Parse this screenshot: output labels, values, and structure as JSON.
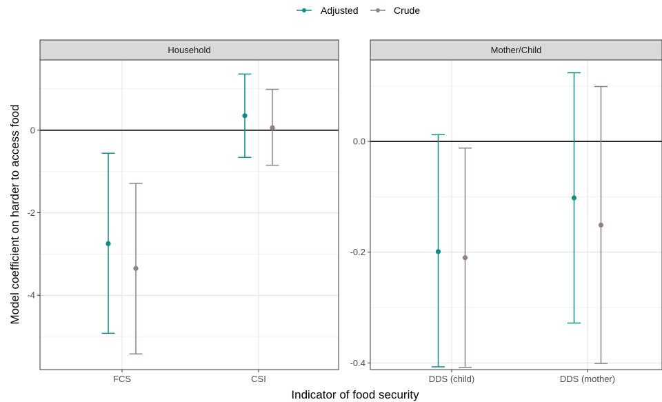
{
  "legend": {
    "items": [
      {
        "label": "Adjusted",
        "color": "#0f8c86"
      },
      {
        "label": "Crude",
        "color": "#8e808f"
      }
    ]
  },
  "axes": {
    "xlabel": "Indicator of food security",
    "ylabel": "Model coefficient on harder to access food"
  },
  "chart_data": [
    {
      "type": "scatter",
      "panel": "Household",
      "categories": [
        "FCS",
        "CSI"
      ],
      "ylim": [
        -5.8,
        1.7
      ],
      "yticks": [
        -4,
        -2,
        0
      ],
      "ytick_labels": [
        "-4",
        "-2",
        "0"
      ],
      "reference_line": 0,
      "grid": true,
      "series": [
        {
          "name": "Adjusted",
          "color": "#0f8c86",
          "points": [
            {
              "category": "FCS",
              "estimate": -2.75,
              "lower": -4.92,
              "upper": -0.56
            },
            {
              "category": "CSI",
              "estimate": 0.35,
              "lower": -0.66,
              "upper": 1.36
            }
          ]
        },
        {
          "name": "Crude",
          "color": "#8e808f",
          "points": [
            {
              "category": "FCS",
              "estimate": -3.35,
              "lower": -5.42,
              "upper": -1.29
            },
            {
              "category": "CSI",
              "estimate": 0.06,
              "lower": -0.85,
              "upper": 0.99
            }
          ]
        }
      ]
    },
    {
      "type": "scatter",
      "panel": "Mother/Child",
      "categories": [
        "DDS (child)",
        "DDS (mother)"
      ],
      "ylim": [
        -0.412,
        0.147
      ],
      "yticks": [
        -0.4,
        -0.2,
        0.0
      ],
      "ytick_labels": [
        "-0.4",
        "-0.2",
        "0.0"
      ],
      "reference_line": 0,
      "grid": true,
      "series": [
        {
          "name": "Adjusted",
          "color": "#0f8c86",
          "points": [
            {
              "category": "DDS (child)",
              "estimate": -0.199,
              "lower": -0.407,
              "upper": 0.012
            },
            {
              "category": "DDS (mother)",
              "estimate": -0.102,
              "lower": -0.328,
              "upper": 0.124
            }
          ]
        },
        {
          "name": "Crude",
          "color": "#8e808f",
          "points": [
            {
              "category": "DDS (child)",
              "estimate": -0.21,
              "lower": -0.408,
              "upper": -0.012
            },
            {
              "category": "DDS (mother)",
              "estimate": -0.151,
              "lower": -0.401,
              "upper": 0.099
            }
          ]
        }
      ]
    }
  ]
}
